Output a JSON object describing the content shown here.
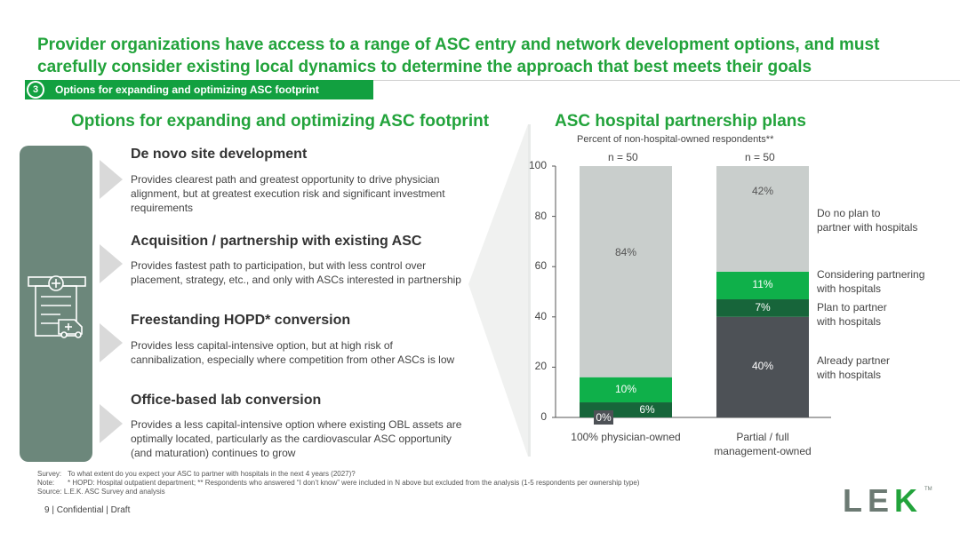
{
  "title": "Provider organizations have access to a range of ASC entry and network development options, and must carefully consider existing local dynamics to determine the approach that best meets their goals",
  "section": {
    "number": "3",
    "label": "Options for expanding and optimizing ASC footprint"
  },
  "left": {
    "heading": "Options for expanding and optimizing ASC footprint",
    "icon": "hospital-ambulance-icon",
    "options": [
      {
        "title": "De novo site development",
        "desc": "Provides clearest path and greatest opportunity to drive physician alignment, but at greatest execution risk and significant investment requirements"
      },
      {
        "title": "Acquisition / partnership with existing ASC",
        "desc": "Provides fastest path to participation, but with less control over placement, strategy, etc., and only with ASCs interested in partnership"
      },
      {
        "title": "Freestanding HOPD* conversion",
        "desc": "Provides less capital-intensive option, but at high risk of cannibalization, especially where competition from other ASCs is low"
      },
      {
        "title": "Office-based lab conversion",
        "desc": "Provides a less capital-intensive option where existing OBL assets are optimally located, particularly as the cardiovascular ASC opportunity (and maturation) continues to grow"
      }
    ]
  },
  "colors": {
    "green": "#22a33b",
    "bright_green": "#0fb04a",
    "dark_green": "#17653a",
    "dark_gray": "#4d5156",
    "light_gray": "#c9cecc",
    "panel": "#6c877b"
  },
  "chart_data": {
    "type": "bar",
    "stacked": true,
    "title": "ASC hospital partnership plans",
    "subtitle": "Percent of non-hospital-owned respondents**",
    "categories": [
      "100% physician-owned",
      "Partial / full management-owned"
    ],
    "n_labels": [
      "n = 50",
      "n = 50"
    ],
    "ylim": [
      0,
      100
    ],
    "yticks": [
      "0",
      "20",
      "40",
      "60",
      "80",
      "100"
    ],
    "series": [
      {
        "name": "Already partner with hospitals",
        "values": [
          0,
          40
        ],
        "labels": [
          "0%",
          "40%"
        ]
      },
      {
        "name": "Plan to partner with hospitals",
        "values": [
          6,
          7
        ],
        "labels": [
          "6%",
          "7%"
        ]
      },
      {
        "name": "Considering partnering with hospitals",
        "values": [
          10,
          11
        ],
        "labels": [
          "10%",
          "11%"
        ]
      },
      {
        "name": "Do no plan to partner with hospitals",
        "values": [
          84,
          42
        ],
        "labels": [
          "84%",
          "42%"
        ]
      }
    ],
    "legend_lines": [
      [
        "Do no plan to",
        "partner with hospitals"
      ],
      [
        "Considering partnering",
        "with hospitals"
      ],
      [
        "Plan to partner",
        "with hospitals"
      ],
      [
        "Already partner",
        "with hospitals"
      ]
    ],
    "legend_placement": "right"
  },
  "footnotes": {
    "survey_key": "Survey:",
    "survey": "To what extent do you expect your ASC to partner with hospitals in the next 4 years (2027)?",
    "note_key": "Note:",
    "note": "* HOPD: Hospital outpatient department; ** Respondents who answered “I don’t know” were included in N above but excluded from the analysis (1-5 respondents per ownership type)",
    "source_key": "Source:",
    "source": "L.E.K. ASC Survey and analysis"
  },
  "footer": {
    "page": "9",
    "text": "| Confidential | Draft"
  },
  "logo": {
    "left": "LE",
    "k": "K",
    "tm": "TM"
  }
}
